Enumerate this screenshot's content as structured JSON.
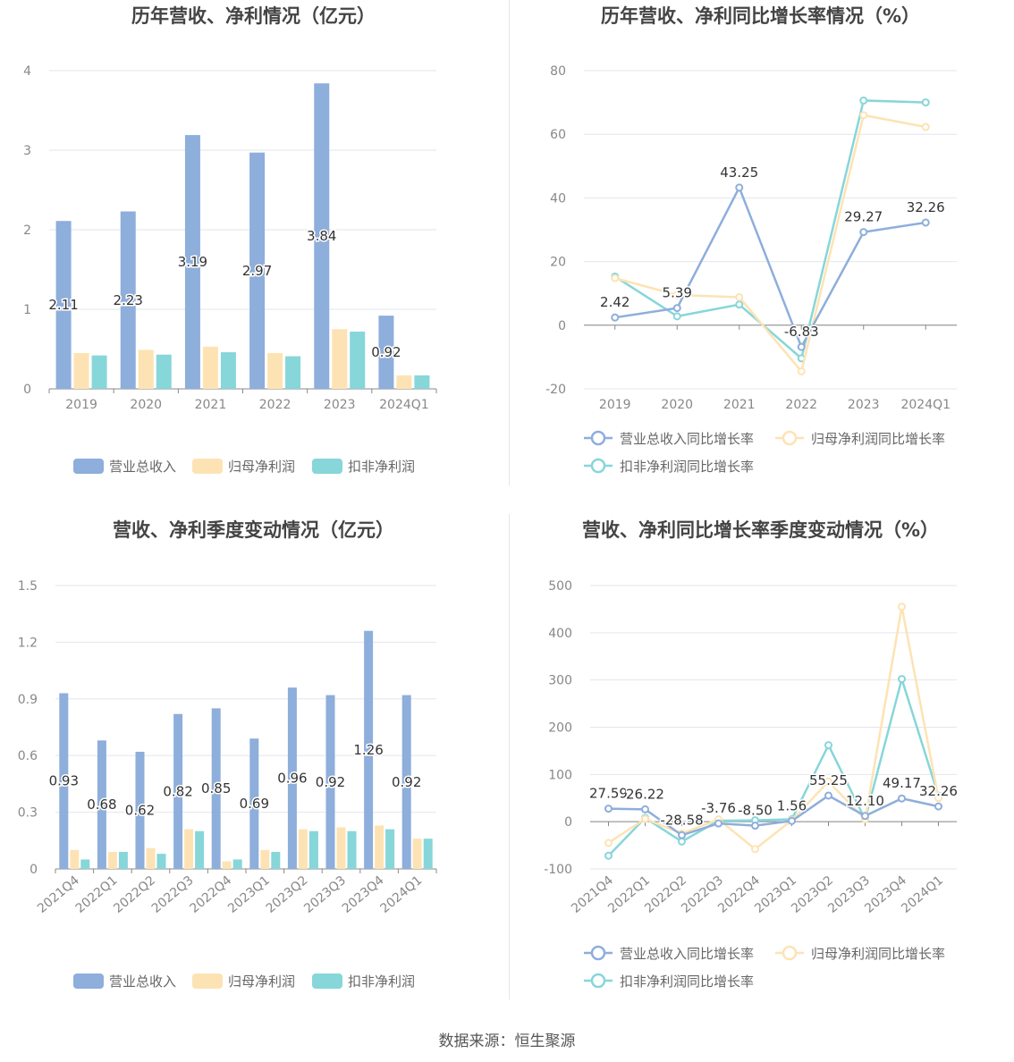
{
  "source": "数据来源：恒生聚源",
  "colors": {
    "revenue": "#8eaedb",
    "net_profit": "#fde3b4",
    "deducted_profit": "#87d6d9",
    "grid": "#e3e6ee",
    "axis": "#888888",
    "text": "#666666"
  },
  "charts": [
    {
      "title": "历年营收、净利情况（亿元）",
      "chart_data": {
        "type": "bar",
        "categories": [
          "2019",
          "2020",
          "2021",
          "2022",
          "2023",
          "2024Q1"
        ],
        "ylim": [
          0,
          4
        ],
        "yticks": [
          0,
          1,
          2,
          3,
          4
        ],
        "series": [
          {
            "name": "营业总收入",
            "values": [
              2.11,
              2.23,
              3.19,
              2.97,
              3.84,
              0.92
            ],
            "labels": [
              "2.11",
              "2.23",
              "3.19",
              "2.97",
              "3.84",
              "0.92"
            ]
          },
          {
            "name": "归母净利润",
            "values": [
              0.45,
              0.49,
              0.53,
              0.45,
              0.75,
              0.17
            ]
          },
          {
            "name": "扣非净利润",
            "values": [
              0.42,
              0.43,
              0.46,
              0.41,
              0.72,
              0.17
            ]
          }
        ],
        "legend": "bottom"
      }
    },
    {
      "title": "历年营收、净利同比增长率情况（%）",
      "chart_data": {
        "type": "line",
        "categories": [
          "2019",
          "2020",
          "2021",
          "2022",
          "2023",
          "2024Q1"
        ],
        "ylim": [
          -20,
          80
        ],
        "yticks": [
          -20,
          0,
          20,
          40,
          60,
          80
        ],
        "series": [
          {
            "name": "营业总收入同比增长率",
            "values": [
              2.42,
              5.39,
              43.25,
              -6.83,
              29.27,
              32.26
            ],
            "labels": [
              "2.42",
              "5.39",
              "43.25",
              "-6.83",
              "29.27",
              "32.26"
            ]
          },
          {
            "name": "归母净利润同比增长率",
            "values": [
              14.8,
              9.5,
              8.8,
              -14.5,
              66.0,
              62.3
            ]
          },
          {
            "name": "扣非净利润同比增长率",
            "values": [
              15.3,
              2.8,
              6.5,
              -10.4,
              70.6,
              70.0
            ]
          }
        ],
        "legend": "bottom"
      }
    },
    {
      "title": "营收、净利季度变动情况（亿元）",
      "chart_data": {
        "type": "bar",
        "categories": [
          "2021Q4",
          "2022Q1",
          "2022Q2",
          "2022Q3",
          "2022Q4",
          "2023Q1",
          "2023Q2",
          "2023Q3",
          "2023Q4",
          "2024Q1"
        ],
        "ylim": [
          0,
          1.5
        ],
        "yticks": [
          "0",
          "0.3",
          "0.6",
          "0.9",
          "1.2",
          "1.5"
        ],
        "series": [
          {
            "name": "营业总收入",
            "values": [
              0.93,
              0.68,
              0.62,
              0.82,
              0.85,
              0.69,
              0.96,
              0.92,
              1.26,
              0.92
            ],
            "labels": [
              "0.93",
              "0.68",
              "0.62",
              "0.82",
              "0.85",
              "0.69",
              "0.96",
              "0.92",
              "1.26",
              "0.92"
            ]
          },
          {
            "name": "归母净利润",
            "values": [
              0.1,
              0.09,
              0.11,
              0.21,
              0.04,
              0.1,
              0.21,
              0.22,
              0.23,
              0.16
            ]
          },
          {
            "name": "扣非净利润",
            "values": [
              0.05,
              0.09,
              0.08,
              0.2,
              0.05,
              0.09,
              0.2,
              0.2,
              0.21,
              0.16
            ]
          }
        ],
        "legend": "bottom"
      }
    },
    {
      "title": "营收、净利同比增长率季度变动情况（%）",
      "chart_data": {
        "type": "line",
        "categories": [
          "2021Q4",
          "2022Q1",
          "2022Q2",
          "2022Q3",
          "2022Q4",
          "2023Q1",
          "2023Q2",
          "2023Q3",
          "2023Q4",
          "2024Q1"
        ],
        "ylim": [
          -100,
          500
        ],
        "yticks": [
          -100,
          0,
          100,
          200,
          300,
          400,
          500
        ],
        "series": [
          {
            "name": "营业总收入同比增长率",
            "values": [
              27.59,
              26.22,
              -28.58,
              -3.76,
              -8.5,
              1.56,
              55.25,
              12.1,
              49.17,
              32.26
            ],
            "labels": [
              "27.59",
              "26.22",
              "-28.58",
              "-3.76",
              "-8.50",
              "1.56",
              "55.25",
              "12.10",
              "49.17",
              "32.26"
            ]
          },
          {
            "name": "归母净利润同比增长率",
            "values": [
              -45,
              6,
              -25,
              5,
              -58,
              3,
              85,
              5,
              455,
              50
            ]
          },
          {
            "name": "扣非净利润同比增长率",
            "values": [
              -72,
              8,
              -42,
              2,
              3,
              5,
              162,
              5,
              302,
              55
            ]
          }
        ],
        "legend": "bottom"
      }
    }
  ]
}
